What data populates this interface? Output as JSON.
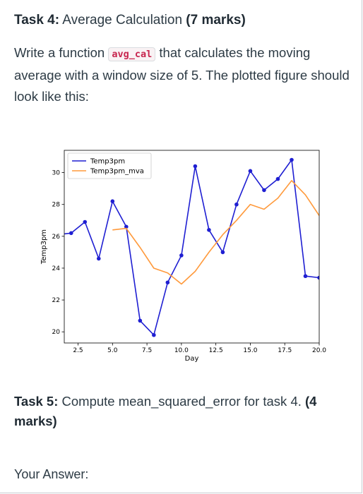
{
  "task4": {
    "label": "Task 4:",
    "title": " Average Calculation ",
    "marks": "(7 marks)"
  },
  "prompt": {
    "before": "Write a function ",
    "code": "avg_cal",
    "after": " that calculates the moving average with a window size of 5. The plotted figure should look like this:"
  },
  "task5": {
    "label": "Task 5:",
    "text": " Compute mean_squared_error for task 4. ",
    "marks": "(4 marks)"
  },
  "answer_label": "Your Answer:",
  "colors": {
    "temp": "#1f1fd2",
    "mva": "#ff9a3c"
  },
  "chart_data": {
    "type": "line",
    "xlabel": "Day",
    "ylabel": "Temp3pm",
    "xlim": [
      1.5,
      20.0
    ],
    "ylim": [
      19.3,
      31.4
    ],
    "xticks": [
      2.5,
      5.0,
      7.5,
      10.0,
      12.5,
      15.0,
      17.5,
      20.0
    ],
    "xtick_labels": [
      "2.5",
      "5.0",
      "7.5",
      "10.0",
      "12.5",
      "15.0",
      "17.5",
      "20.0"
    ],
    "yticks": [
      20,
      22,
      24,
      26,
      28,
      30
    ],
    "ytick_labels": [
      "20",
      "22",
      "24",
      "26",
      "28",
      "30"
    ],
    "legend_position": "top-left",
    "series": [
      {
        "name": "Temp3pm",
        "color": "#1f1fd2",
        "markers": true,
        "x": [
          1,
          2,
          3,
          4,
          5,
          6,
          7,
          8,
          9,
          10,
          11,
          12,
          13,
          14,
          15,
          16,
          17,
          18,
          19,
          20
        ],
        "y": [
          26.1,
          26.2,
          26.9,
          24.6,
          28.2,
          26.6,
          20.7,
          19.8,
          23.1,
          24.8,
          30.4,
          26.4,
          25.0,
          28.0,
          30.1,
          28.9,
          29.6,
          30.8,
          23.5,
          23.4
        ]
      },
      {
        "name": "Temp3pm_mva",
        "color": "#ff9a3c",
        "markers": false,
        "x": [
          5,
          6,
          7,
          8,
          9,
          10,
          11,
          12,
          13,
          14,
          15,
          16,
          17,
          18,
          19,
          20
        ],
        "y": [
          26.4,
          26.5,
          25.3,
          24.0,
          23.7,
          23.0,
          23.8,
          25.0,
          26.1,
          27.0,
          28.0,
          27.7,
          28.4,
          29.5,
          28.6,
          27.3
        ]
      }
    ]
  }
}
